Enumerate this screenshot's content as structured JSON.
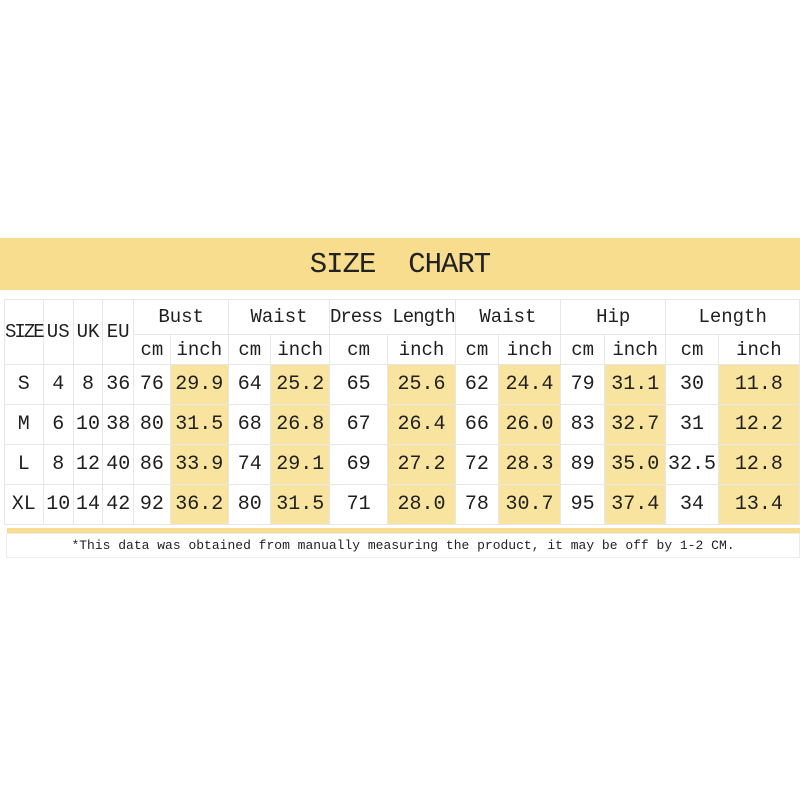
{
  "banner": {
    "title": "SIZE  CHART"
  },
  "footnote": "*This data was obtained from manually measuring the product, it may be off by 1-2 CM.",
  "colors": {
    "banner_yellow": "#f7dd8d",
    "cell_highlight": "#f8e49e",
    "grid": "#e7e7e7",
    "text": "#1f1f1f"
  },
  "chart_data": {
    "type": "table",
    "title": "SIZE CHART",
    "column_groups": [
      {
        "label": "SIZE",
        "span": 1
      },
      {
        "label": "US",
        "span": 1
      },
      {
        "label": "UK",
        "span": 1
      },
      {
        "label": "EU",
        "span": 1
      },
      {
        "label": "Bust",
        "span": 2
      },
      {
        "label": "Waist",
        "span": 2
      },
      {
        "label": "Dress Length",
        "span": 2
      },
      {
        "label": "Waist",
        "span": 2
      },
      {
        "label": "Hip",
        "span": 2
      },
      {
        "label": "Length",
        "span": 2
      }
    ],
    "sub_units": [
      "cm",
      "inch"
    ],
    "columns": [
      "SIZE",
      "US",
      "UK",
      "EU",
      "Bust cm",
      "Bust inch",
      "Waist cm",
      "Waist inch",
      "Dress Length cm",
      "Dress Length inch",
      "Waist cm",
      "Waist inch",
      "Hip cm",
      "Hip inch",
      "Length cm",
      "Length inch"
    ],
    "rows": [
      [
        "S",
        "4",
        "8",
        "36",
        "76",
        "29.9",
        "64",
        "25.2",
        "65",
        "25.6",
        "62",
        "24.4",
        "79",
        "31.1",
        "30",
        "11.8"
      ],
      [
        "M",
        "6",
        "10",
        "38",
        "80",
        "31.5",
        "68",
        "26.8",
        "67",
        "26.4",
        "66",
        "26.0",
        "83",
        "32.7",
        "31",
        "12.2"
      ],
      [
        "L",
        "8",
        "12",
        "40",
        "86",
        "33.9",
        "74",
        "29.1",
        "69",
        "27.2",
        "72",
        "28.3",
        "89",
        "35.0",
        "32.5",
        "12.8"
      ],
      [
        "XL",
        "10",
        "14",
        "42",
        "92",
        "36.2",
        "80",
        "31.5",
        "71",
        "28.0",
        "78",
        "30.7",
        "95",
        "37.4",
        "34",
        "13.4"
      ]
    ]
  }
}
